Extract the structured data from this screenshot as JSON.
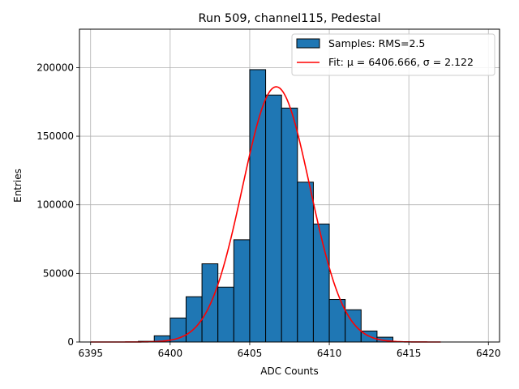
{
  "chart_data": {
    "type": "bar",
    "title": "Run 509, channel115, Pedestal",
    "xlabel": "ADC Counts",
    "ylabel": "Entries",
    "xlim": [
      6394.3,
      6420.7
    ],
    "ylim": [
      0,
      228000
    ],
    "x_ticks": [
      6395,
      6400,
      6405,
      6410,
      6415,
      6420
    ],
    "y_ticks": [
      0,
      50000,
      100000,
      150000,
      200000
    ],
    "grid": true,
    "legend_position": "top-right",
    "histogram": {
      "name": "Samples: RMS=2.5",
      "color": "#1f77b4",
      "bin_width": 1,
      "bin_edges_left": [
        6398,
        6399,
        6400,
        6401,
        6402,
        6403,
        6404,
        6405,
        6406,
        6407,
        6408,
        6409,
        6410,
        6411,
        6412,
        6413
      ],
      "counts": [
        500,
        4500,
        17500,
        33000,
        57000,
        40000,
        74500,
        198500,
        180000,
        170500,
        116500,
        86000,
        31000,
        23500,
        8000,
        3500
      ]
    },
    "fit": {
      "name": "Fit: μ = 6406.666, σ = 2.122",
      "color": "#ff0000",
      "mu": 6406.666,
      "sigma": 2.122,
      "amplitude": 186000,
      "x_range": [
        6395,
        6417
      ]
    }
  }
}
